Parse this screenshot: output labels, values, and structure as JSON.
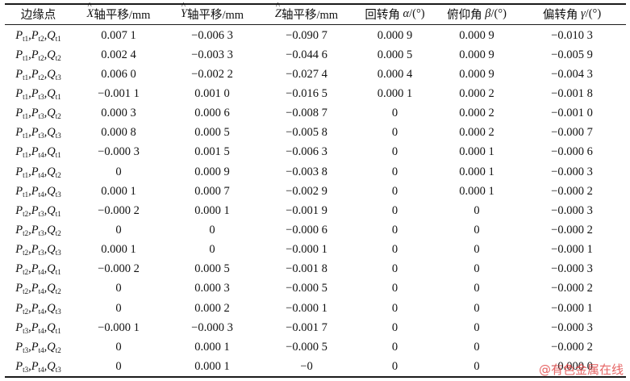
{
  "header": {
    "col0": "边缘点",
    "col1_var": "X",
    "col1_suffix": "轴平移/mm",
    "col2_var": "Y",
    "col2_suffix": "轴平移/mm",
    "col3_var": "Z",
    "col3_suffix": "轴平移/mm",
    "col4_prefix": "回转角",
    "col4_var": "α",
    "col4_unit": "/(°)",
    "col5_prefix": "俯仰角",
    "col5_var": "β",
    "col5_unit": "/(°)",
    "col6_prefix": "偏转角",
    "col6_var": "γ",
    "col6_unit": "/(°)"
  },
  "rows": [
    {
      "p1": "t1",
      "p2": "t2",
      "q": "t1",
      "x": "0.007 1",
      "y": "−0.006 3",
      "z": "−0.090 7",
      "a": "0.000 9",
      "b": "0.000 9",
      "g": "−0.010 3"
    },
    {
      "p1": "t1",
      "p2": "t2",
      "q": "t2",
      "x": "0.002 4",
      "y": "−0.003 3",
      "z": "−0.044 6",
      "a": "0.000 5",
      "b": "0.000 9",
      "g": "−0.005 9"
    },
    {
      "p1": "t1",
      "p2": "t2",
      "q": "t3",
      "x": "0.006 0",
      "y": "−0.002 2",
      "z": "−0.027 4",
      "a": "0.000 4",
      "b": "0.000 9",
      "g": "−0.004 3"
    },
    {
      "p1": "t1",
      "p2": "t3",
      "q": "t1",
      "x": "−0.001 1",
      "y": "0.001 0",
      "z": "−0.016 5",
      "a": "0.000 1",
      "b": "0.000 2",
      "g": "−0.001 8"
    },
    {
      "p1": "t1",
      "p2": "t3",
      "q": "t2",
      "x": "0.000 3",
      "y": "0.000 6",
      "z": "−0.008 7",
      "a": "0",
      "b": "0.000 2",
      "g": "−0.001 0"
    },
    {
      "p1": "t1",
      "p2": "t3",
      "q": "t3",
      "x": "0.000 8",
      "y": "0.000 5",
      "z": "−0.005 8",
      "a": "0",
      "b": "0.000 2",
      "g": "−0.000 7"
    },
    {
      "p1": "t1",
      "p2": "t4",
      "q": "t1",
      "x": "−0.000 3",
      "y": "0.001 5",
      "z": "−0.006 3",
      "a": "0",
      "b": "0.000 1",
      "g": "−0.000 6"
    },
    {
      "p1": "t1",
      "p2": "t4",
      "q": "t2",
      "x": "0",
      "y": "0.000 9",
      "z": "−0.003 8",
      "a": "0",
      "b": "0.000 1",
      "g": "−0.000 3"
    },
    {
      "p1": "t1",
      "p2": "t4",
      "q": "t3",
      "x": "0.000 1",
      "y": "0.000 7",
      "z": "−0.002 9",
      "a": "0",
      "b": "0.000 1",
      "g": "−0.000 2"
    },
    {
      "p1": "t2",
      "p2": "t3",
      "q": "t1",
      "x": "−0.000 2",
      "y": "0.000 1",
      "z": "−0.001 9",
      "a": "0",
      "b": "0",
      "g": "−0.000 3"
    },
    {
      "p1": "t2",
      "p2": "t3",
      "q": "t2",
      "x": "0",
      "y": "0",
      "z": "−0.000 6",
      "a": "0",
      "b": "0",
      "g": "−0.000 2"
    },
    {
      "p1": "t2",
      "p2": "t3",
      "q": "t3",
      "x": "0.000 1",
      "y": "0",
      "z": "−0.000 1",
      "a": "0",
      "b": "0",
      "g": "−0.000 1"
    },
    {
      "p1": "t2",
      "p2": "t4",
      "q": "t1",
      "x": "−0.000 2",
      "y": "0.000 5",
      "z": "−0.001 8",
      "a": "0",
      "b": "0",
      "g": "−0.000 3"
    },
    {
      "p1": "t2",
      "p2": "t4",
      "q": "t2",
      "x": "0",
      "y": "0.000 3",
      "z": "−0.000 5",
      "a": "0",
      "b": "0",
      "g": "−0.000 2"
    },
    {
      "p1": "t2",
      "p2": "t4",
      "q": "t3",
      "x": "0",
      "y": "0.000 2",
      "z": "−0.000 1",
      "a": "0",
      "b": "0",
      "g": "−0.000 1"
    },
    {
      "p1": "t3",
      "p2": "t4",
      "q": "t1",
      "x": "−0.000 1",
      "y": "−0.000 3",
      "z": "−0.001 7",
      "a": "0",
      "b": "0",
      "g": "−0.000 3"
    },
    {
      "p1": "t3",
      "p2": "t4",
      "q": "t2",
      "x": "0",
      "y": "0.000 1",
      "z": "−0.000 5",
      "a": "0",
      "b": "0",
      "g": "−0.000 2"
    },
    {
      "p1": "t3",
      "p2": "t4",
      "q": "t3",
      "x": "0",
      "y": "0.000 1",
      "z": "−0",
      "a": "0",
      "b": "0",
      "g": "−0.000 0"
    }
  ],
  "watermark": "@有色金属在线"
}
